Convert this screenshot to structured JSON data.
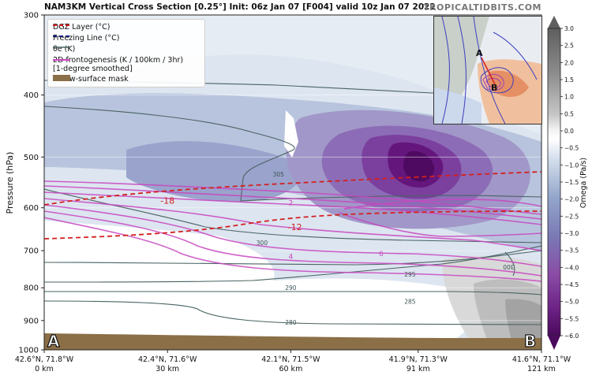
{
  "header": {
    "title": "NAM3KM Vertical Cross Section [0.25°] Init: 06z Jan 07 [F004] valid 10z Jan 07 2022",
    "brand": "TROPICALTIDBITS.COM"
  },
  "legend": {
    "items": [
      {
        "label": "DGZ Layer (°C)",
        "color": "#d42020",
        "style": "dashed"
      },
      {
        "label": "Freezing Line (°C)",
        "color": "#1a237e",
        "style": "dashed"
      },
      {
        "label": "θe (K)",
        "color": "#4a6363",
        "style": "solid"
      },
      {
        "label": "2D frontogenesis (K / 100km / 3hr)",
        "label2": "[1-degree smoothed]",
        "color": "#c847c0",
        "style": "solid"
      },
      {
        "label": "Below-surface mask",
        "color": "#8b6f47",
        "style": "patch"
      }
    ]
  },
  "chart_data": {
    "type": "heatmap",
    "ylabel": "Pressure (hPa)",
    "y_scale": "log",
    "ylim": [
      1000,
      300
    ],
    "yticks": [
      300,
      400,
      500,
      600,
      700,
      800,
      900,
      1000
    ],
    "xticks": [
      {
        "coord": "42.6°N, 71.8°W",
        "dist": "0 km",
        "km": 0
      },
      {
        "coord": "42.4°N, 71.6°W",
        "dist": "30 km",
        "km": 30
      },
      {
        "coord": "42.1°N, 71.5°W",
        "dist": "60 km",
        "km": 60
      },
      {
        "coord": "41.9°N, 71.3°W",
        "dist": "91 km",
        "km": 91
      },
      {
        "coord": "41.6°N, 71.1°W",
        "dist": "121 km",
        "km": 121
      }
    ],
    "xlim": [
      0,
      121
    ],
    "endpoints": {
      "start": "A",
      "end": "B"
    },
    "colorbar": {
      "label": "Omega (Pa/s)",
      "ticks": [
        "3.0",
        "2.5",
        "2.0",
        "1.5",
        "1.0",
        "0.5",
        "0.0",
        "−0.5",
        "−1.0",
        "−1.5",
        "−2.0",
        "−2.5",
        "−3.0",
        "−3.5",
        "−4.0",
        "−4.5",
        "−5.0",
        "−5.5",
        "−6.0"
      ],
      "range": [
        -6,
        3
      ]
    },
    "contour_labels": {
      "dgz": [
        {
          "text": "-18",
          "km": 30,
          "p": 585
        },
        {
          "text": "-12",
          "km": 61,
          "p": 643
        }
      ],
      "theta_e": [
        {
          "text": "305",
          "km": 57,
          "p": 532
        },
        {
          "text": "300",
          "km": 53,
          "p": 680
        },
        {
          "text": "295",
          "km": 89,
          "p": 762
        },
        {
          "text": "290",
          "km": 60,
          "p": 800
        },
        {
          "text": "285",
          "km": 89,
          "p": 840
        },
        {
          "text": "280",
          "km": 60,
          "p": 905
        },
        {
          "text": "300",
          "km": 113,
          "p": 743
        }
      ],
      "frontogenesis": [
        {
          "text": "2",
          "km": 60,
          "p": 590
        },
        {
          "text": "4",
          "km": 60,
          "p": 715
        },
        {
          "text": "6",
          "km": 82,
          "p": 708
        }
      ]
    },
    "omega_minimum": {
      "value": -6.0,
      "km": 92,
      "p": 525
    }
  },
  "colors": {
    "dgz": "#d42020",
    "theta_e": "#4a6363",
    "frontogenesis": "#c847c0",
    "surface_mask": "#8b6f47",
    "omega_negative_max": "#5a0f6b"
  },
  "inset": {
    "label_a": "A",
    "label_b": "B"
  }
}
